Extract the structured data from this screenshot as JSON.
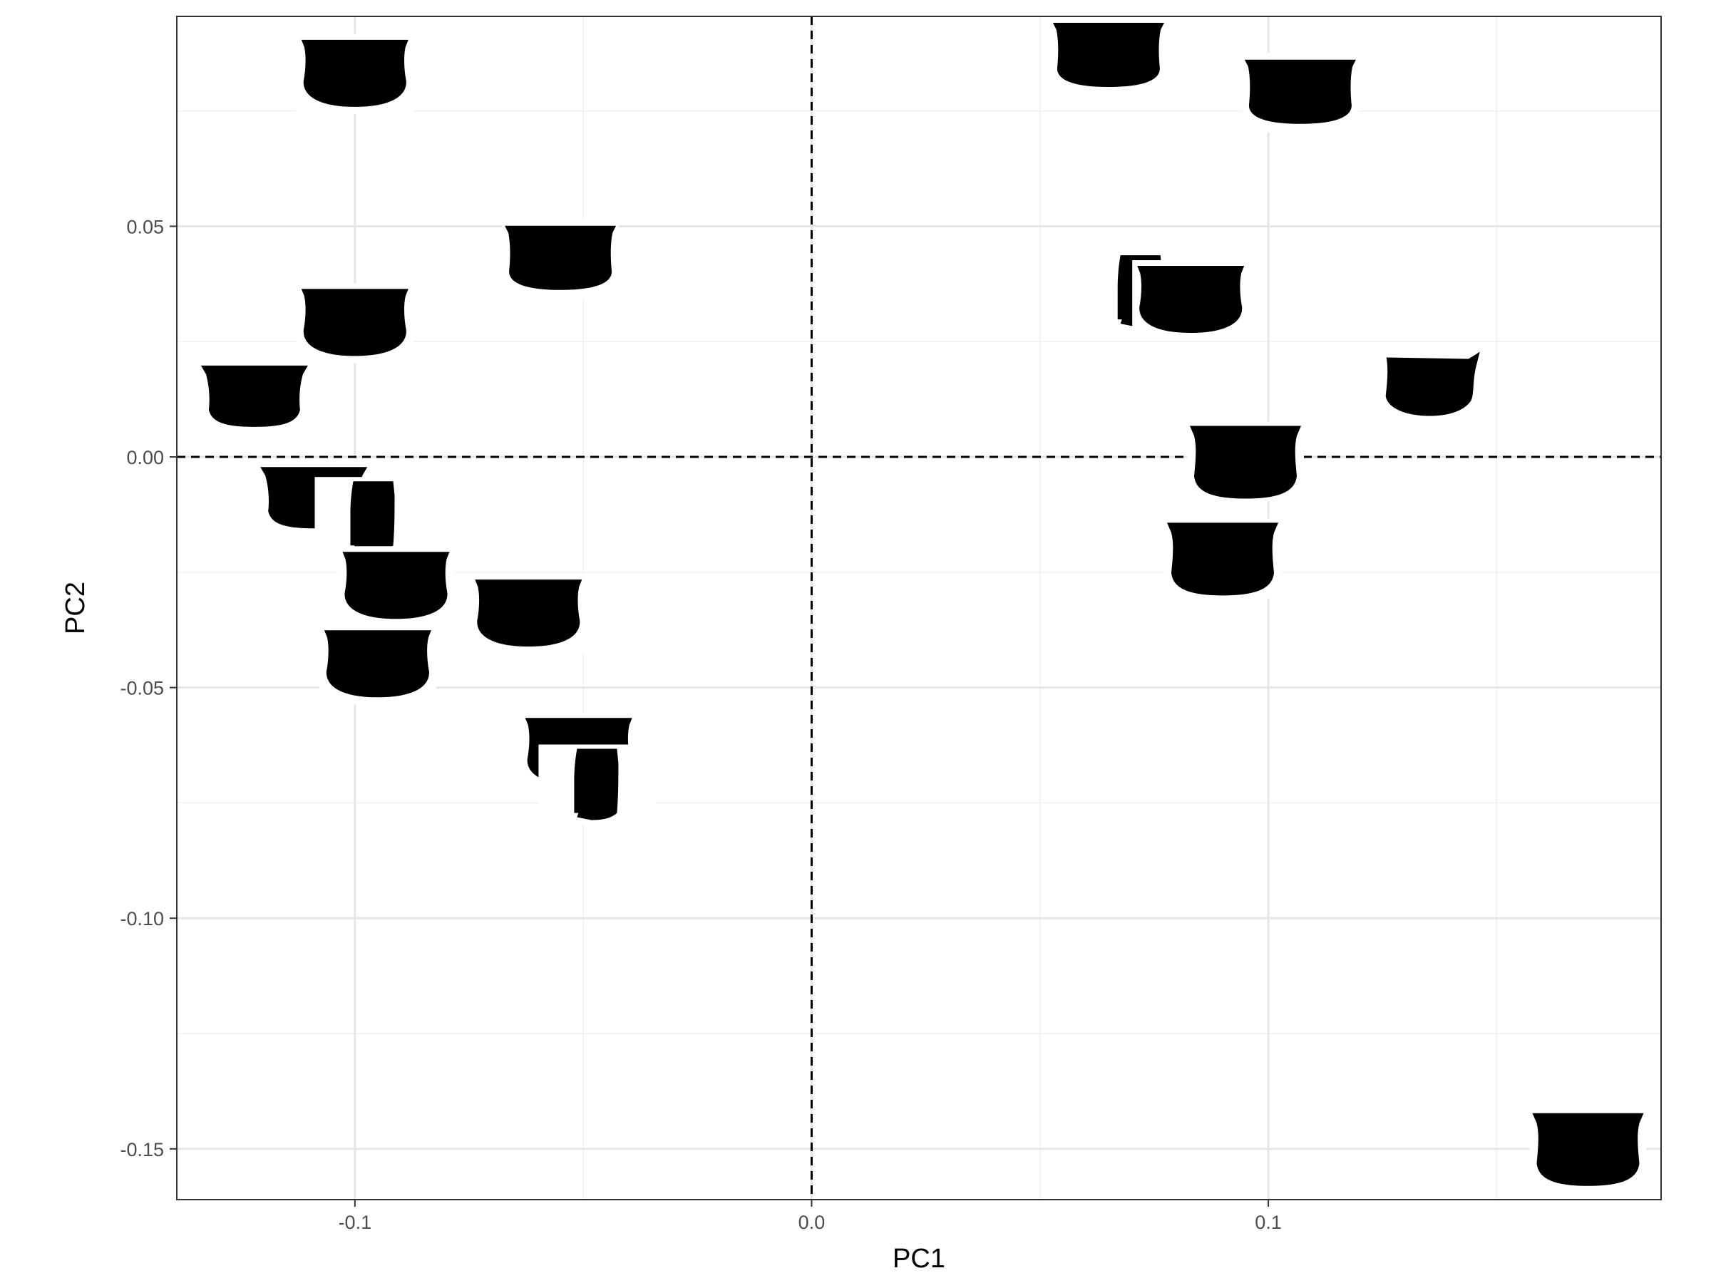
{
  "chart_data": {
    "type": "scatter",
    "marker": "pot-outline-silhouette",
    "xlabel": "PC1",
    "ylabel": "PC2",
    "xlim": [
      -0.139,
      0.186
    ],
    "ylim": [
      -0.161,
      0.0955
    ],
    "x_ticks": [
      -0.1,
      0.0,
      0.1
    ],
    "x_tick_labels": [
      "-0.1",
      "0.0",
      "0.1"
    ],
    "y_ticks": [
      -0.15,
      -0.1,
      -0.05,
      0.0,
      0.05
    ],
    "y_tick_labels": [
      "-0.15",
      "-0.10",
      "-0.05",
      "0.00",
      "0.05"
    ],
    "reference_lines": {
      "x": 0,
      "y": 0,
      "style": "dashed"
    },
    "grid": true,
    "theme": "black-and-white",
    "points": [
      {
        "x": -0.1,
        "y": 0.083,
        "shape": "bowl-round"
      },
      {
        "x": -0.055,
        "y": 0.043,
        "shape": "bowl-flat"
      },
      {
        "x": -0.1,
        "y": 0.029,
        "shape": "bowl-round"
      },
      {
        "x": -0.122,
        "y": 0.013,
        "shape": "bowl-small"
      },
      {
        "x": -0.109,
        "y": -0.009,
        "shape": "bowl-small"
      },
      {
        "x": -0.096,
        "y": -0.013,
        "shape": "jar-square"
      },
      {
        "x": -0.091,
        "y": -0.028,
        "shape": "bowl-round"
      },
      {
        "x": -0.062,
        "y": -0.034,
        "shape": "bowl-round"
      },
      {
        "x": -0.095,
        "y": -0.045,
        "shape": "bowl-round"
      },
      {
        "x": -0.051,
        "y": -0.064,
        "shape": "bowl-round"
      },
      {
        "x": -0.047,
        "y": -0.071,
        "shape": "jar-square"
      },
      {
        "x": 0.065,
        "y": 0.087,
        "shape": "bowl-flat"
      },
      {
        "x": 0.107,
        "y": 0.079,
        "shape": "bowl-flat"
      },
      {
        "x": 0.072,
        "y": 0.036,
        "shape": "jar-square"
      },
      {
        "x": 0.083,
        "y": 0.034,
        "shape": "bowl-round"
      },
      {
        "x": 0.136,
        "y": 0.016,
        "shape": "bowl-spout"
      },
      {
        "x": 0.095,
        "y": -0.001,
        "shape": "bowl-deep"
      },
      {
        "x": 0.09,
        "y": -0.022,
        "shape": "bowl-deep"
      },
      {
        "x": 0.17,
        "y": -0.15,
        "shape": "bowl-deep"
      }
    ]
  }
}
